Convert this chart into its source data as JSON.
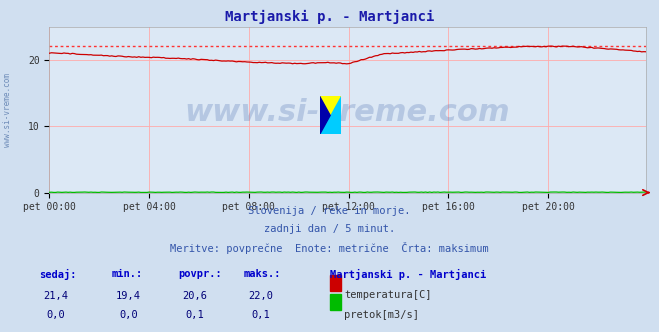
{
  "title": "Martjanski p. - Martjanci",
  "title_color": "#1a1aaa",
  "title_fontsize": 10,
  "bg_color": "#d0dff0",
  "plot_bg_color": "#dce8f5",
  "grid_color_h": "#ffaaaa",
  "grid_color_v": "#ffaaaa",
  "xlabel_ticks": [
    "pet 00:00",
    "pet 04:00",
    "pet 08:00",
    "pet 12:00",
    "pet 16:00",
    "pet 20:00"
  ],
  "tick_positions": [
    0,
    48,
    96,
    144,
    192,
    240
  ],
  "yticks": [
    0,
    10,
    20
  ],
  "ylim": [
    0,
    25
  ],
  "xlim": [
    0,
    287
  ],
  "watermark": "www.si-vreme.com",
  "watermark_color": "#4466aa",
  "watermark_alpha": 0.25,
  "watermark_fontsize": 22,
  "subtitle1": "Slovenija / reke in morje.",
  "subtitle2": "zadnji dan / 5 minut.",
  "subtitle3": "Meritve: povprečne  Enote: metrične  Črta: maksimum",
  "subtitle_color": "#3355aa",
  "subtitle_fontsize": 7.5,
  "left_label": "www.si-vreme.com",
  "left_label_color": "#5577aa",
  "table_headers": [
    "sedaj:",
    "min.:",
    "povpr.:",
    "maks.:"
  ],
  "table_header_color": "#0000cc",
  "table_values_temp": [
    "21,4",
    "19,4",
    "20,6",
    "22,0"
  ],
  "table_values_flow": [
    "0,0",
    "0,0",
    "0,1",
    "0,1"
  ],
  "table_value_color": "#000077",
  "station_name": "Martjanski p. - Martjanci",
  "station_name_color": "#0000cc",
  "legend_temp_label": "temperatura[C]",
  "legend_flow_label": "pretok[m3/s]",
  "temp_color": "#cc0000",
  "flow_color": "#00bb00",
  "max_line_color": "#ff3333",
  "max_temp_value": 22.0,
  "n_points": 288,
  "logo_colors": [
    "#ffff00",
    "#00ccff",
    "#0000aa",
    "#00ccff"
  ],
  "arrow_color": "#cc0000"
}
